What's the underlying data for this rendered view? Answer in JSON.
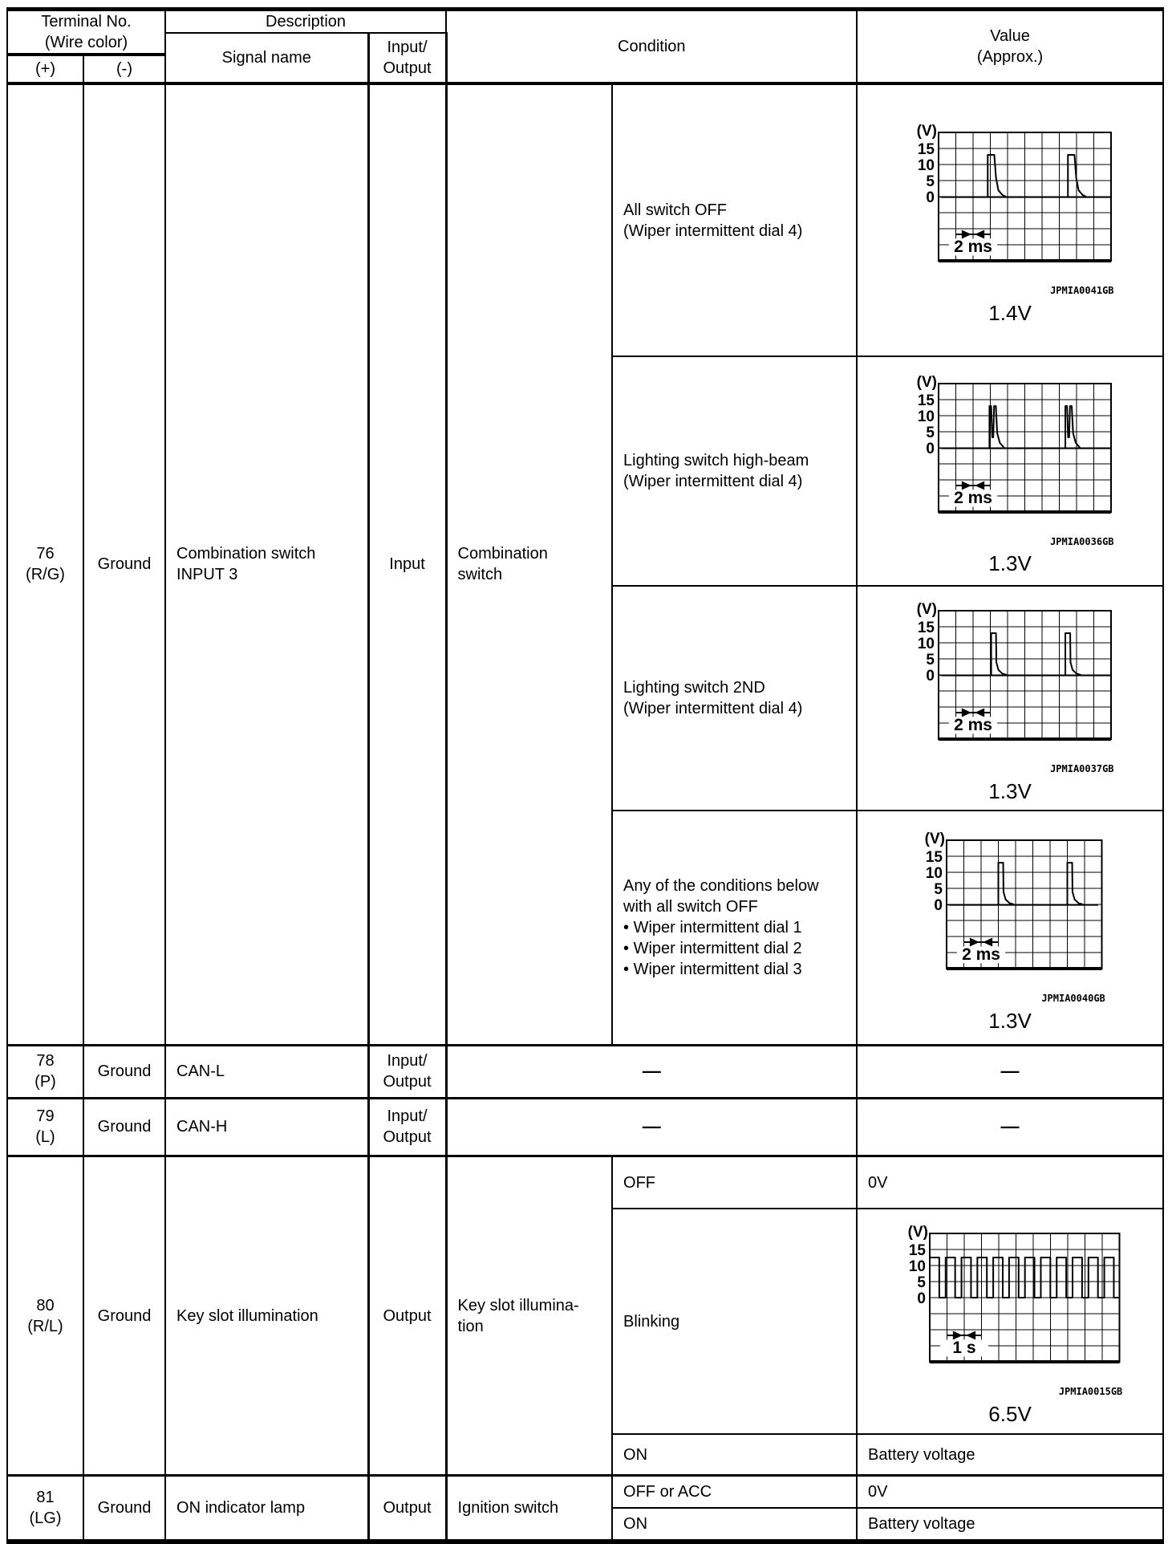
{
  "header": {
    "terminal_group": "Terminal No.\n(Wire color)",
    "plus": "(+)",
    "minus": "(-)",
    "description": "Description",
    "signal_name": "Signal name",
    "input_output": "Input/\nOutput",
    "condition": "Condition",
    "value": "Value\n(Approx.)"
  },
  "rows": {
    "r76": {
      "terminal": "76\n(R/G)",
      "ground": "Ground",
      "signal": "Combination switch\nINPUT 3",
      "io": "Input",
      "reference": "Combination\nswitch",
      "conditions": [
        {
          "text": "All switch OFF\n(Wiper intermittent dial 4)",
          "waveform": "w1"
        },
        {
          "text": "Lighting switch high-beam\n(Wiper intermittent dial 4)",
          "waveform": "w2"
        },
        {
          "text": "Lighting switch 2ND\n(Wiper intermittent dial 4)",
          "waveform": "w3"
        },
        {
          "text": "Any of the conditions below\nwith all switch OFF\n•  Wiper intermittent dial 1\n•  Wiper intermittent dial 2\n•  Wiper intermittent dial 3",
          "waveform": "w4"
        }
      ]
    },
    "r78": {
      "terminal": "78\n(P)",
      "ground": "Ground",
      "signal": "CAN-L",
      "io": "Input/\nOutput",
      "condition": "—",
      "value": "—"
    },
    "r79": {
      "terminal": "79\n(L)",
      "ground": "Ground",
      "signal": "CAN-H",
      "io": "Input/\nOutput",
      "condition": "—",
      "value": "—"
    },
    "r80": {
      "terminal": "80\n(R/L)",
      "ground": "Ground",
      "signal": "Key slot illumination",
      "io": "Output",
      "reference": "Key slot illumina-\ntion",
      "subs": [
        {
          "condition": "OFF",
          "value": "0V"
        },
        {
          "condition": "Blinking",
          "waveform": "w5"
        },
        {
          "condition": "ON",
          "value": "Battery voltage"
        }
      ]
    },
    "r81": {
      "terminal": "81\n(LG)",
      "ground": "Ground",
      "signal": "ON indicator lamp",
      "io": "Output",
      "reference": "Ignition switch",
      "subs": [
        {
          "condition": "OFF or ACC",
          "value": "0V"
        },
        {
          "condition": "ON",
          "value": "Battery voltage"
        }
      ]
    }
  },
  "waveforms": {
    "w1": {
      "type": "pulse",
      "cols": 10,
      "rows": 8,
      "y_unit": "(V)",
      "y_ticks": [
        "15",
        "10",
        "5",
        "0"
      ],
      "volts_per_div": 5,
      "zero_div": 4,
      "peak_v": 13,
      "pulse_x": [
        2.85,
        7.5
      ],
      "time_label": "2 ms",
      "code": "JPMIA0041GB",
      "value": "1.4V"
    },
    "w2": {
      "type": "double",
      "cols": 10,
      "rows": 8,
      "y_unit": "(V)",
      "y_ticks": [
        "15",
        "10",
        "5",
        "0"
      ],
      "volts_per_div": 5,
      "zero_div": 4,
      "peak_v": 13,
      "pulse_x": [
        2.95,
        7.35
      ],
      "time_label": "2 ms",
      "code": "JPMIA0036GB",
      "value": "1.3V"
    },
    "w3": {
      "type": "spike",
      "cols": 10,
      "rows": 8,
      "y_unit": "(V)",
      "y_ticks": [
        "15",
        "10",
        "5",
        "0"
      ],
      "volts_per_div": 5,
      "zero_div": 4,
      "peak_v": 13,
      "pulse_x": [
        3.05,
        7.35
      ],
      "time_label": "2 ms",
      "code": "JPMIA0037GB",
      "value": "1.3V"
    },
    "w4": {
      "type": "spike",
      "cols": 9,
      "rows": 8,
      "y_unit": "(V)",
      "y_ticks": [
        "15",
        "10",
        "5",
        "0"
      ],
      "volts_per_div": 5,
      "zero_div": 4,
      "peak_v": 13,
      "pulse_x": [
        3.0,
        7.0
      ],
      "time_label": "2 ms",
      "code": "JPMIA0040GB",
      "value": "1.3V"
    },
    "w5": {
      "type": "square",
      "cols": 11,
      "rows": 8,
      "y_unit": "(V)",
      "y_ticks": [
        "15",
        "10",
        "5",
        "0"
      ],
      "volts_per_div": 5,
      "zero_div": 4,
      "peak_v": 12.5,
      "period": 0.92,
      "duty": 0.6,
      "time_label": "1 s",
      "code": "JPMIA0015GB",
      "value": "6.5V"
    }
  }
}
